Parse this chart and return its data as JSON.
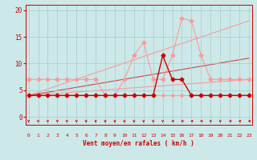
{
  "background_color": "#cce8e8",
  "grid_color": "#aacccc",
  "xlabel": "Vent moyen/en rafales ( km/h )",
  "xlim": [
    -0.3,
    23.3
  ],
  "ylim": [
    -1.5,
    21
  ],
  "yticks": [
    0,
    5,
    10,
    15,
    20
  ],
  "xticks": [
    0,
    1,
    2,
    3,
    4,
    5,
    6,
    7,
    8,
    9,
    10,
    11,
    12,
    13,
    14,
    15,
    16,
    17,
    18,
    19,
    20,
    21,
    22,
    23
  ],
  "series_pink_upper": {
    "x": [
      0,
      1,
      2,
      3,
      4,
      5,
      6,
      7,
      8,
      9,
      10,
      11,
      12,
      13,
      14,
      15,
      16,
      17,
      18,
      19,
      20,
      21,
      22,
      23
    ],
    "y": [
      7,
      7,
      7,
      7,
      7,
      7,
      7,
      7,
      4,
      4,
      7,
      11.5,
      14,
      7,
      7,
      11.5,
      18.5,
      18,
      11.5,
      7,
      7,
      7,
      7,
      7
    ],
    "color": "#ff9999",
    "lw": 0.8,
    "ms": 2.5
  },
  "series_pink_lower": {
    "x": [
      0,
      1,
      2,
      3,
      4,
      5,
      6,
      7,
      8,
      9,
      10,
      11,
      12,
      13,
      14,
      15,
      16,
      17,
      18,
      19,
      20,
      21,
      22,
      23
    ],
    "y": [
      4,
      4,
      4,
      4,
      4,
      4,
      4,
      4,
      4,
      4,
      4,
      4,
      4,
      4,
      4,
      4,
      4,
      4,
      4,
      4,
      4,
      4,
      4,
      4
    ],
    "color": "#ff9999",
    "lw": 0.8,
    "ms": 2.0
  },
  "series_dark_main": {
    "x": [
      0,
      1,
      2,
      3,
      4,
      5,
      6,
      7,
      8,
      9,
      10,
      11,
      12,
      13,
      14,
      15,
      16,
      17,
      18,
      19,
      20,
      21,
      22,
      23
    ],
    "y": [
      4,
      4,
      4,
      4,
      4,
      4,
      4,
      4,
      4,
      4,
      4,
      4,
      4,
      4,
      11.5,
      7,
      7,
      4,
      4,
      4,
      4,
      4,
      4,
      4
    ],
    "color": "#cc0000",
    "lw": 1.0,
    "ms": 2.5
  },
  "trend_pink_upper": {
    "x": [
      0,
      23
    ],
    "y": [
      4,
      18
    ],
    "color": "#ff9999",
    "lw": 0.8
  },
  "trend_pink_lower": {
    "x": [
      0,
      23
    ],
    "y": [
      4,
      7
    ],
    "color": "#ff9999",
    "lw": 0.8
  },
  "trend_dark": {
    "x": [
      0,
      23
    ],
    "y": [
      4,
      11
    ],
    "color": "#cc0000",
    "lw": 0.8,
    "alpha": 0.7
  },
  "arrows_down_x": [
    0,
    1,
    2,
    3,
    4,
    5,
    6,
    7,
    8,
    9,
    10,
    11,
    12,
    13,
    14,
    19,
    20
  ],
  "arrows_left_x": [
    15,
    16,
    17,
    18,
    21,
    22,
    23
  ],
  "arrow_color": "#cc0000"
}
